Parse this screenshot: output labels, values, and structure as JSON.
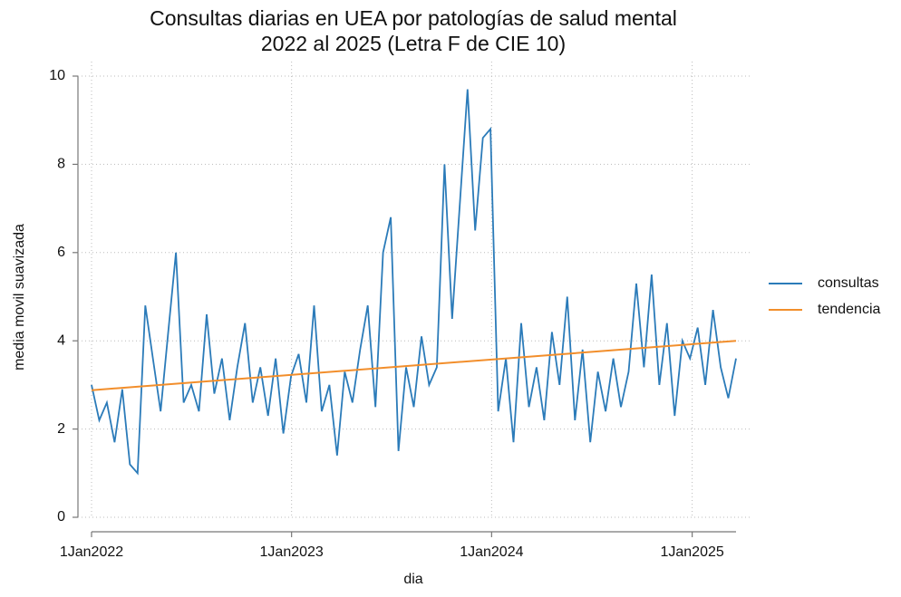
{
  "chart_data": {
    "type": "line",
    "title": [
      "Consultas diarias en UEA por patologías de salud mental",
      "2022 al 2025 (Letra F de CIE 10)"
    ],
    "x_label": "dia",
    "y_label": "media movil suavizada",
    "xlim": [
      "2022-01-01",
      "2025-03-22"
    ],
    "xticks": [
      {
        "value": "2022-01-01",
        "label": "1Jan2022"
      },
      {
        "value": "2023-01-01",
        "label": "1Jan2023"
      },
      {
        "value": "2024-01-01",
        "label": "1Jan2024"
      },
      {
        "value": "2025-01-01",
        "label": "1Jan2025"
      }
    ],
    "ylim": [
      0,
      10
    ],
    "yticks": [
      0,
      2,
      4,
      6,
      8,
      10
    ],
    "grid": true,
    "legend": "right",
    "series": [
      {
        "name": "consultas",
        "color": "#2b7bb9",
        "x": [
          "2022-01-01",
          "2022-01-15",
          "2022-01-29",
          "2022-02-12",
          "2022-02-26",
          "2022-03-12",
          "2022-03-26",
          "2022-04-09",
          "2022-04-23",
          "2022-05-07",
          "2022-05-21",
          "2022-06-04",
          "2022-06-18",
          "2022-07-02",
          "2022-07-16",
          "2022-07-30",
          "2022-08-13",
          "2022-08-27",
          "2022-09-10",
          "2022-09-24",
          "2022-10-08",
          "2022-10-22",
          "2022-11-05",
          "2022-11-19",
          "2022-12-03",
          "2022-12-17",
          "2022-12-31",
          "2023-01-14",
          "2023-01-28",
          "2023-02-11",
          "2023-02-25",
          "2023-03-11",
          "2023-03-25",
          "2023-04-08",
          "2023-04-22",
          "2023-05-06",
          "2023-05-20",
          "2023-06-03",
          "2023-06-17",
          "2023-07-01",
          "2023-07-15",
          "2023-07-29",
          "2023-08-12",
          "2023-08-26",
          "2023-09-09",
          "2023-09-23",
          "2023-10-07",
          "2023-10-21",
          "2023-11-04",
          "2023-11-18",
          "2023-12-02",
          "2023-12-16",
          "2023-12-30",
          "2024-01-13",
          "2024-01-27",
          "2024-02-10",
          "2024-02-24",
          "2024-03-09",
          "2024-03-23",
          "2024-04-06",
          "2024-04-20",
          "2024-05-04",
          "2024-05-18",
          "2024-06-01",
          "2024-06-15",
          "2024-06-29",
          "2024-07-13",
          "2024-07-27",
          "2024-08-10",
          "2024-08-24",
          "2024-09-07",
          "2024-09-21",
          "2024-10-05",
          "2024-10-19",
          "2024-11-02",
          "2024-11-16",
          "2024-11-30",
          "2024-12-14",
          "2024-12-28",
          "2025-01-11",
          "2025-01-25",
          "2025-02-08",
          "2025-02-22",
          "2025-03-08",
          "2025-03-22"
        ],
        "values": [
          3.0,
          2.2,
          2.6,
          1.7,
          2.9,
          1.2,
          1.0,
          4.8,
          3.6,
          2.4,
          4.2,
          6.0,
          2.6,
          3.0,
          2.4,
          4.6,
          2.8,
          3.6,
          2.2,
          3.4,
          4.4,
          2.6,
          3.4,
          2.3,
          3.6,
          1.9,
          3.2,
          3.7,
          2.6,
          4.8,
          2.4,
          3.0,
          1.4,
          3.3,
          2.6,
          3.8,
          4.8,
          2.5,
          6.0,
          6.8,
          1.5,
          3.4,
          2.5,
          4.1,
          3.0,
          3.4,
          8.0,
          4.5,
          7.1,
          9.7,
          6.5,
          8.6,
          8.8,
          2.4,
          3.6,
          1.7,
          4.4,
          2.5,
          3.4,
          2.2,
          4.2,
          3.0,
          5.0,
          2.2,
          3.8,
          1.7,
          3.3,
          2.4,
          3.6,
          2.5,
          3.3,
          5.3,
          3.4,
          5.5,
          3.0,
          4.4,
          2.3,
          4.0,
          3.6,
          4.3,
          3.0,
          4.7,
          3.4,
          2.7,
          3.6
        ]
      },
      {
        "name": "tendencia",
        "color": "#f28e2b",
        "x": [
          "2022-01-01",
          "2025-03-22"
        ],
        "values": [
          2.88,
          4.0
        ]
      }
    ]
  }
}
